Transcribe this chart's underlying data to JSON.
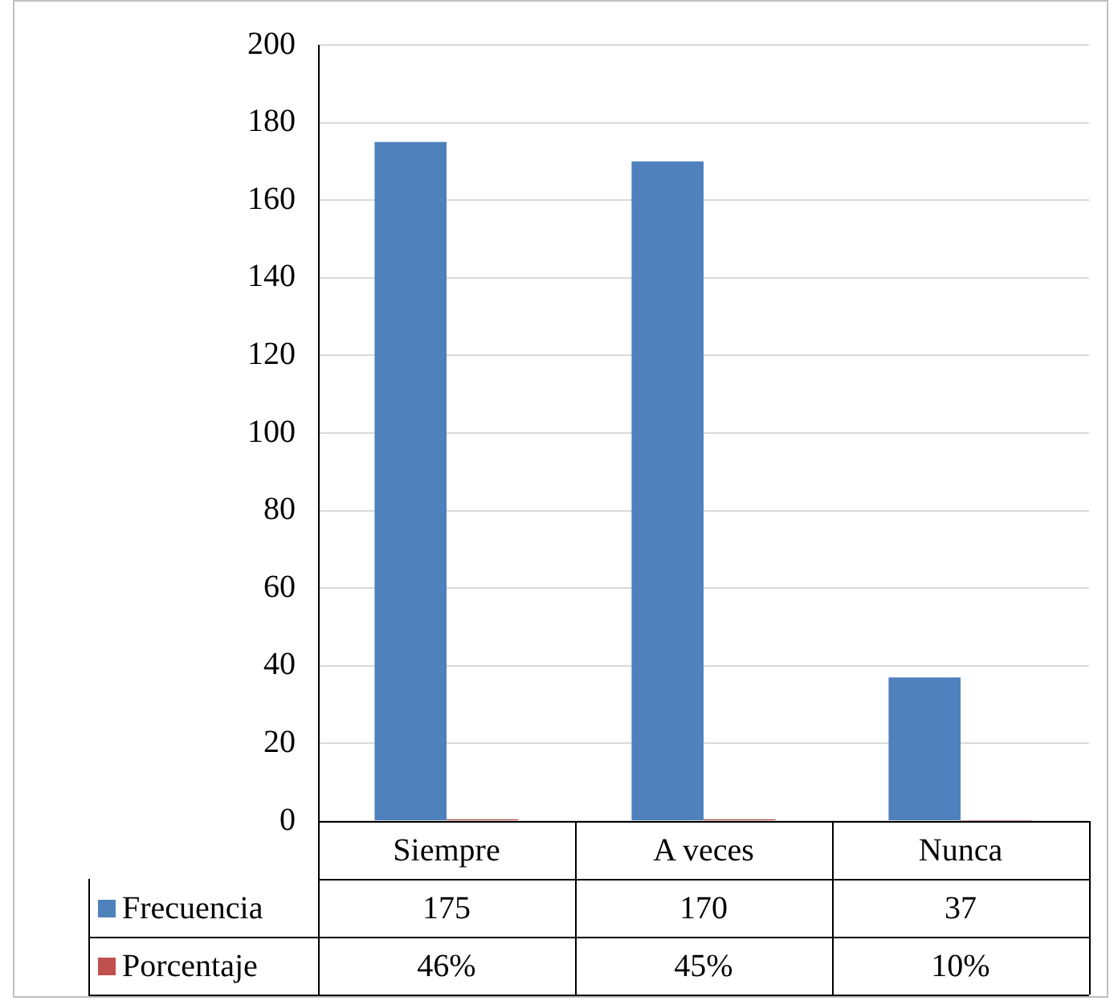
{
  "chart_data": {
    "type": "bar",
    "categories": [
      "Siempre",
      "A veces",
      "Nunca"
    ],
    "series": [
      {
        "name": "Frecuencia",
        "color": "#4f81bd",
        "values": [
          175,
          170,
          37
        ],
        "value_labels": [
          "175",
          "170",
          "37"
        ]
      },
      {
        "name": "Porcentaje",
        "color": "#c0504d",
        "values": [
          0.46,
          0.45,
          0.1
        ],
        "value_labels": [
          "46%",
          "45%",
          "10%"
        ]
      }
    ],
    "ylim": [
      0,
      200
    ],
    "yticks": [
      0,
      20,
      40,
      60,
      80,
      100,
      120,
      140,
      160,
      180,
      200
    ],
    "grid": "y",
    "legend": "bottom"
  }
}
